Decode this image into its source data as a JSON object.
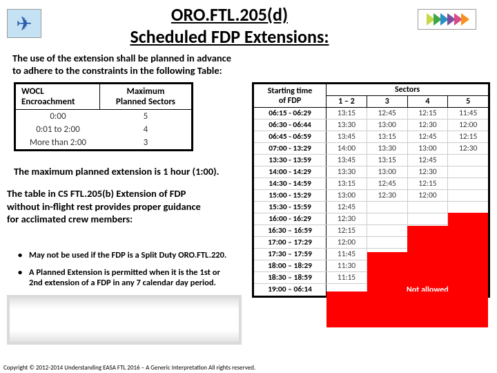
{
  "title_line1": "ORO.FTL.205(d)",
  "title_line2": "Scheduled FDP Extensions:",
  "intro_l1": "The use of the extension shall be planned in advance",
  "intro_l2": "to adhere to the constraints in the following Table:",
  "wocl": {
    "h1a": "WOCL",
    "h1b": "Encroachment",
    "h2a": "Maximum",
    "h2b": "Planned Sectors",
    "rows": [
      [
        "0:00",
        "5"
      ],
      [
        "0:01 to 2:00",
        "4"
      ],
      [
        "More than 2:00",
        "3"
      ]
    ]
  },
  "fdp": {
    "h_start_a": "Starting time",
    "h_start_b": "of FDP",
    "h_sectors": "Sectors",
    "sector_cols": [
      "1 – 2",
      "3",
      "4",
      "5"
    ],
    "rows": [
      [
        "06:15 - 06:29",
        "13:15",
        "12:45",
        "12:15",
        "11:45"
      ],
      [
        "06:30 - 06:44",
        "13:30",
        "13:00",
        "12:30",
        "12:00"
      ],
      [
        "06:45 - 06:59",
        "13:45",
        "13:15",
        "12:45",
        "12:15"
      ],
      [
        "07:00 - 13:29",
        "14:00",
        "13:30",
        "13:00",
        "12:30"
      ],
      [
        "13:30 - 13:59",
        "13:45",
        "13:15",
        "12:45",
        ""
      ],
      [
        "14:00 - 14:29",
        "13:30",
        "13:00",
        "12:30",
        ""
      ],
      [
        "14:30 - 14:59",
        "13:15",
        "12:45",
        "12:15",
        ""
      ],
      [
        "15:00 - 15:29",
        "13:00",
        "12:30",
        "12:00",
        ""
      ],
      [
        "15:30 - 15:59",
        "12:45",
        "",
        "",
        ""
      ],
      [
        "16:00 - 16:29",
        "12:30",
        "",
        "",
        ""
      ],
      [
        "16:30 – 16:59",
        "12:15",
        "",
        "",
        ""
      ],
      [
        "17:00 – 17:29",
        "12:00",
        "",
        "",
        ""
      ],
      [
        "17:30 – 17:59",
        "11:45",
        "",
        "",
        ""
      ],
      [
        "18:00 – 18:29",
        "11:30",
        "",
        "",
        ""
      ],
      [
        "18:30 – 18:59",
        "11:15",
        "",
        "",
        ""
      ],
      [
        "19:00 – 06:14",
        "",
        "",
        "",
        ""
      ]
    ],
    "not_allowed": "Not allowed"
  },
  "note1": "The maximum planned extension is 1 hour (1:00).",
  "note2_l1": "The table in CS FTL.205(b) Extension of FDP",
  "note2_l2": "without in-flight rest provides proper guidance",
  "note2_l3": "for acclimated crew members:",
  "bullet1": "May not be used if the FDP is a Split Duty ORO.FTL.220.",
  "bullet2_l1": "A Planned Extension is permitted when it is the 1st or",
  "bullet2_l2": "2nd extension of a FDP in any 7 calendar day period.",
  "copyright": "Copyright © 2012-2014 Understanding EASA FTL 2016 – A Generic Interpretation All rights reserved.",
  "chev_colors": [
    "#c9d846",
    "#3fa648",
    "#2a8fc4",
    "#7b4d9c",
    "#d94a8a",
    "#f6921e"
  ]
}
